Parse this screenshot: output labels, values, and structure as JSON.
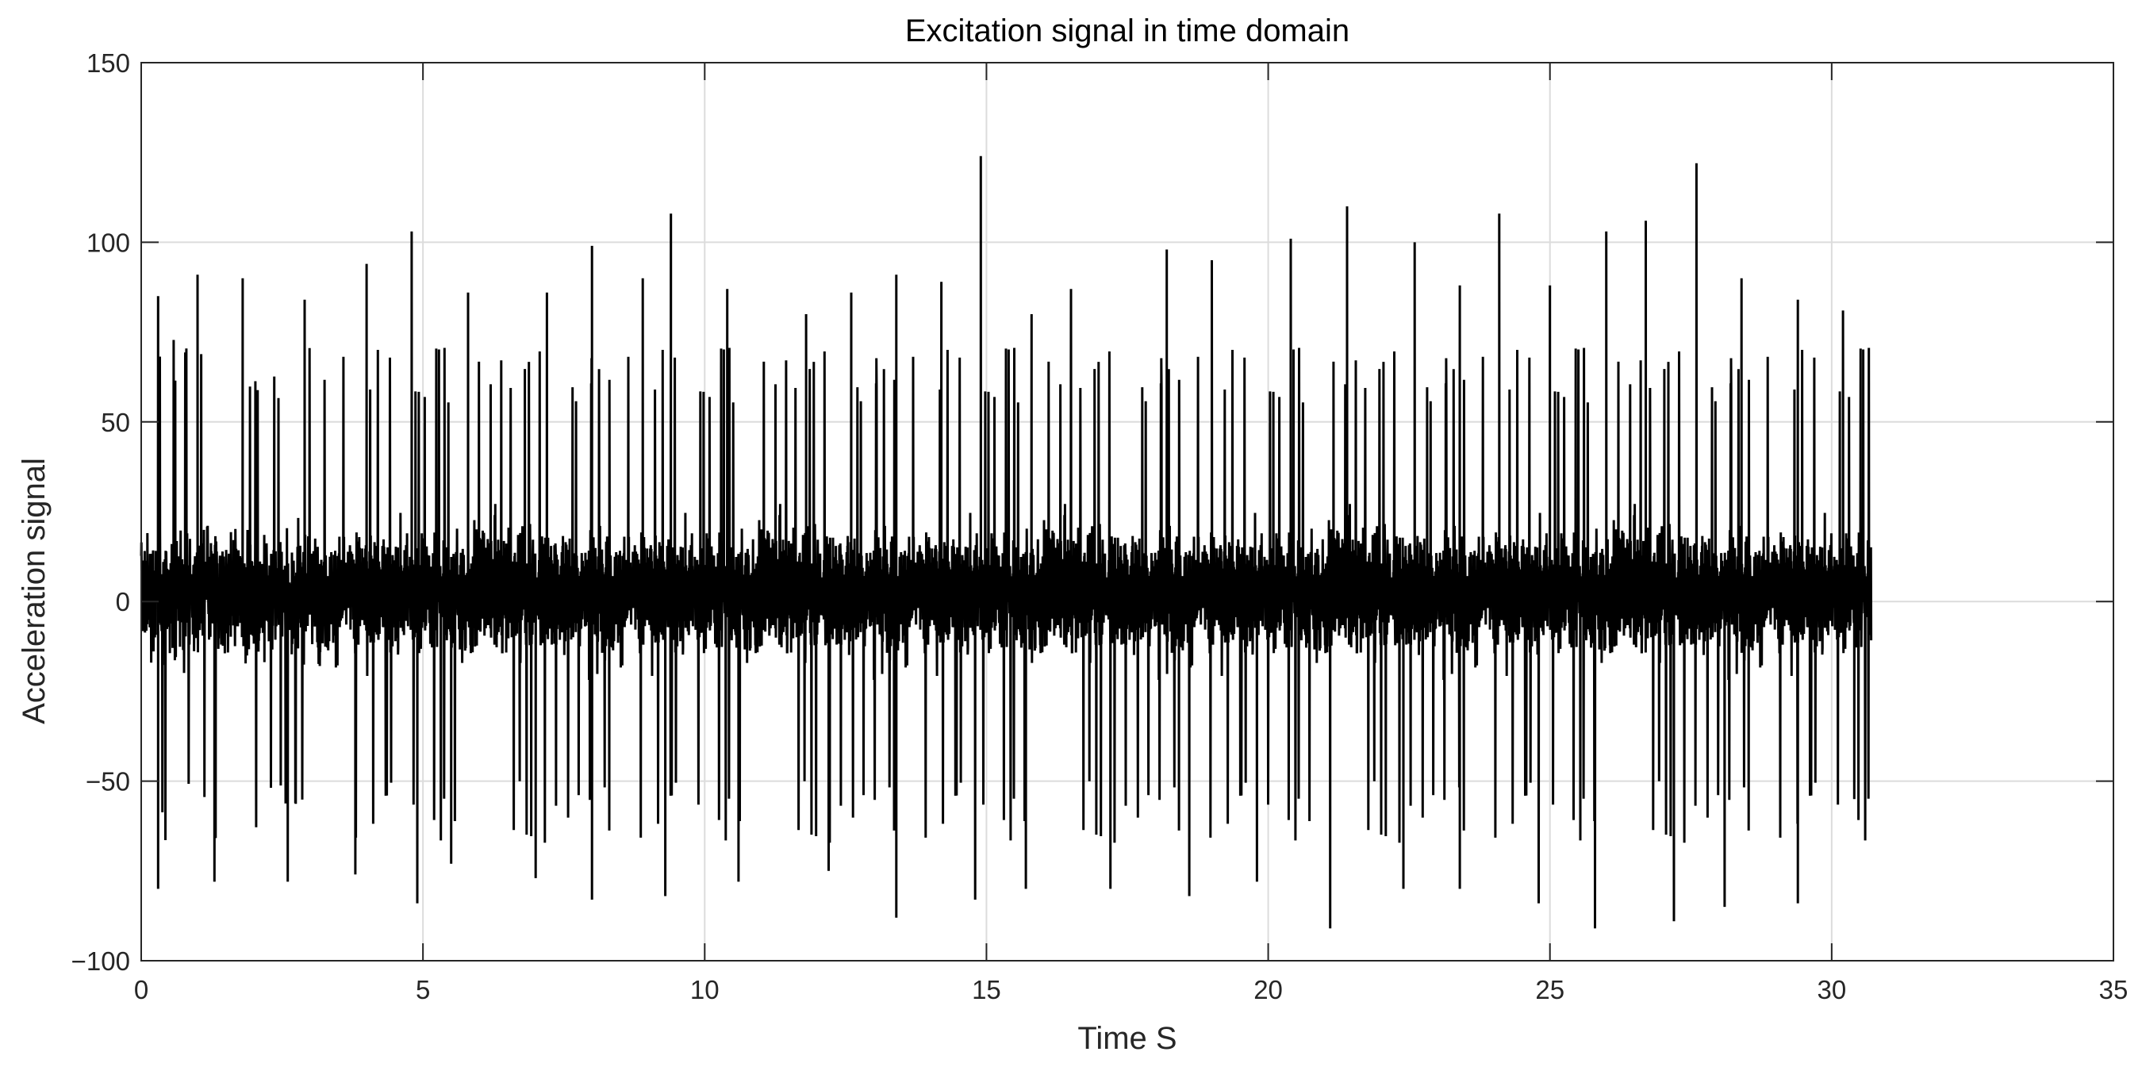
{
  "chart_data": {
    "type": "line",
    "title": "Excitation signal in time domain",
    "xlabel": "Time S",
    "ylabel": "Acceleration signal",
    "xlim": [
      0,
      35
    ],
    "ylim": [
      -100,
      150
    ],
    "xticks": [
      0,
      5,
      10,
      15,
      20,
      25,
      30,
      35
    ],
    "yticks": [
      -100,
      -50,
      0,
      50,
      100,
      150
    ],
    "xtick_labels": [
      "0",
      "5",
      "10",
      "15",
      "20",
      "25",
      "30",
      "35"
    ],
    "ytick_labels": [
      "−100",
      "−50",
      "0",
      "50",
      "100",
      "150"
    ],
    "grid": true,
    "legend": "none",
    "line_color": "#000000",
    "series": [
      {
        "x_range": [
          0,
          30.7
        ],
        "typical_band": [
          -50,
          55
        ],
        "peaks": [
          {
            "x": 0.3,
            "y": 85
          },
          {
            "x": 1.0,
            "y": 91
          },
          {
            "x": 1.8,
            "y": 90
          },
          {
            "x": 2.9,
            "y": 84
          },
          {
            "x": 4.0,
            "y": 94
          },
          {
            "x": 4.8,
            "y": 103
          },
          {
            "x": 5.8,
            "y": 86
          },
          {
            "x": 7.2,
            "y": 86
          },
          {
            "x": 8.0,
            "y": 99
          },
          {
            "x": 8.9,
            "y": 90
          },
          {
            "x": 9.4,
            "y": 108
          },
          {
            "x": 10.4,
            "y": 87
          },
          {
            "x": 11.8,
            "y": 80
          },
          {
            "x": 12.6,
            "y": 86
          },
          {
            "x": 13.4,
            "y": 91
          },
          {
            "x": 14.2,
            "y": 89
          },
          {
            "x": 14.9,
            "y": 124
          },
          {
            "x": 15.8,
            "y": 80
          },
          {
            "x": 16.5,
            "y": 87
          },
          {
            "x": 18.2,
            "y": 98
          },
          {
            "x": 19.0,
            "y": 95
          },
          {
            "x": 20.4,
            "y": 101
          },
          {
            "x": 21.4,
            "y": 110
          },
          {
            "x": 22.6,
            "y": 100
          },
          {
            "x": 23.4,
            "y": 88
          },
          {
            "x": 24.1,
            "y": 108
          },
          {
            "x": 25.0,
            "y": 88
          },
          {
            "x": 26.0,
            "y": 103
          },
          {
            "x": 26.7,
            "y": 106
          },
          {
            "x": 27.6,
            "y": 122
          },
          {
            "x": 28.4,
            "y": 90
          },
          {
            "x": 29.4,
            "y": 84
          },
          {
            "x": 30.2,
            "y": 81
          }
        ],
        "troughs": [
          {
            "x": 0.3,
            "y": -80
          },
          {
            "x": 1.3,
            "y": -78
          },
          {
            "x": 2.6,
            "y": -78
          },
          {
            "x": 3.8,
            "y": -76
          },
          {
            "x": 4.9,
            "y": -84
          },
          {
            "x": 5.5,
            "y": -73
          },
          {
            "x": 7.0,
            "y": -77
          },
          {
            "x": 8.0,
            "y": -83
          },
          {
            "x": 9.3,
            "y": -82
          },
          {
            "x": 10.6,
            "y": -78
          },
          {
            "x": 12.2,
            "y": -75
          },
          {
            "x": 13.4,
            "y": -88
          },
          {
            "x": 14.8,
            "y": -83
          },
          {
            "x": 15.7,
            "y": -80
          },
          {
            "x": 17.2,
            "y": -80
          },
          {
            "x": 18.6,
            "y": -82
          },
          {
            "x": 19.8,
            "y": -78
          },
          {
            "x": 21.1,
            "y": -91
          },
          {
            "x": 22.4,
            "y": -80
          },
          {
            "x": 23.4,
            "y": -80
          },
          {
            "x": 24.8,
            "y": -84
          },
          {
            "x": 25.8,
            "y": -91
          },
          {
            "x": 27.2,
            "y": -89
          },
          {
            "x": 28.1,
            "y": -85
          },
          {
            "x": 29.4,
            "y": -84
          },
          {
            "x": 30.4,
            "y": -55
          }
        ]
      }
    ]
  }
}
